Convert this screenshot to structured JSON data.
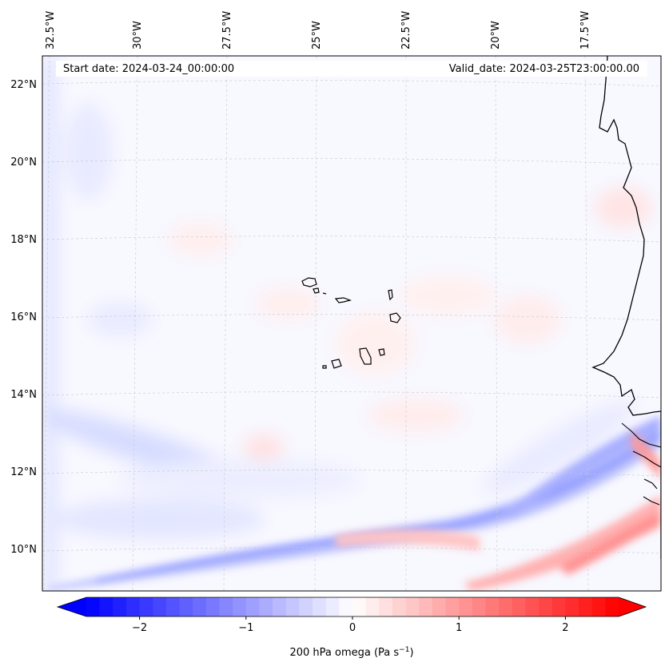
{
  "map": {
    "start_date": "Start date: 2024-03-24_00:00:00",
    "valid_date": "Valid_date: 2024-03-25T23:00:00.00",
    "longitude_labels": [
      "32.5°W",
      "30°W",
      "27.5°W",
      "25°W",
      "22.5°W",
      "20°W",
      "17.5°W"
    ],
    "latitude_labels": [
      "22°N",
      "20°N",
      "18°N",
      "16°N",
      "14°N",
      "12°N",
      "10°N"
    ]
  },
  "colorbar": {
    "tick_labels": [
      "−2",
      "−1",
      "0",
      "1",
      "2"
    ],
    "tick_values": [
      -2,
      -1,
      0,
      1,
      2
    ],
    "range": [
      -2.5,
      2.5
    ],
    "label_prefix": "200 hPa omega (Pa s",
    "label_exponent": "−1",
    "label_suffix": ")",
    "colors": {
      "negative": "#0000ff",
      "zero": "#ffffff",
      "positive": "#ff0000"
    }
  }
}
